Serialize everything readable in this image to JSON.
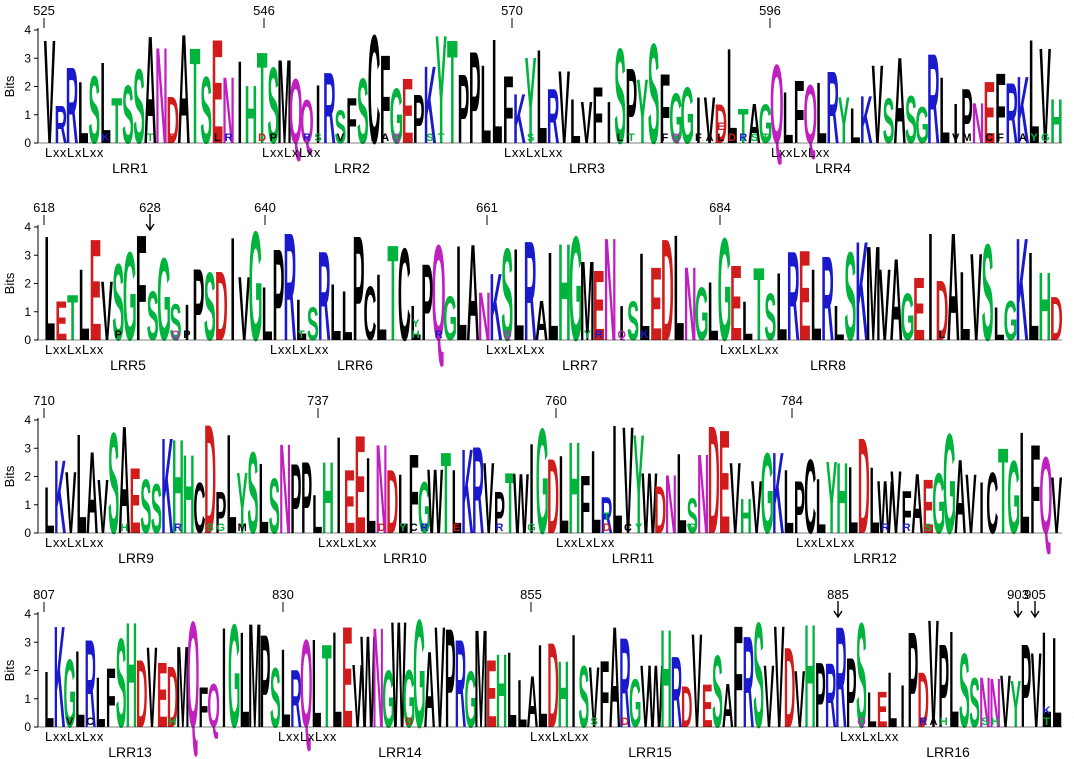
{
  "y_axis": {
    "label": "Bits",
    "ticks": [
      "0",
      "1",
      "2",
      "3",
      "4"
    ]
  },
  "motif_text": "LxxLxLxx",
  "colors": {
    "hydrophobic": "#000000",
    "polar": "#00b33c",
    "basic": "#1a1acc",
    "acidic": "#d01c1c",
    "amide": "#c020c0"
  },
  "rows": [
    {
      "position_labels": [
        "525",
        "546",
        "570",
        "596"
      ],
      "repeats": [
        "LRR1",
        "LRR2",
        "LRR3",
        "LRR4"
      ],
      "sequence": "VRRLSLTSSANDATSENIHTSMQQIRSFSCFGEPKYTPPLLFKYLRVLVFISPYSFGGIVDLTAGQLFQLRYLKVSASGRLIPNEFRKLVH",
      "minor": [
        {
          "aa": "K",
          "col": 5
        },
        {
          "aa": "T",
          "col": 9
        },
        {
          "aa": "D",
          "col": 11
        },
        {
          "aa": "L",
          "col": 15
        },
        {
          "aa": "R",
          "col": 16
        },
        {
          "aa": "D",
          "col": 19
        },
        {
          "aa": "P",
          "col": 20
        },
        {
          "aa": "R",
          "col": 23
        },
        {
          "aa": "S",
          "col": 24
        },
        {
          "aa": "V",
          "col": 26
        },
        {
          "aa": "L",
          "col": 29
        },
        {
          "aa": "A",
          "col": 30
        },
        {
          "aa": "Q",
          "col": 31
        },
        {
          "aa": "S",
          "col": 34
        },
        {
          "aa": "T",
          "col": 35
        },
        {
          "aa": "S",
          "col": 43
        },
        {
          "aa": "L",
          "col": 51
        },
        {
          "aa": "T",
          "col": 52
        },
        {
          "aa": "F",
          "col": 55
        },
        {
          "aa": "Q",
          "col": 56
        },
        {
          "aa": "F",
          "col": 58
        },
        {
          "aa": "A",
          "col": 59
        },
        {
          "aa": "L",
          "col": 60
        },
        {
          "aa": "D",
          "col": 61
        },
        {
          "aa": "R",
          "col": 62
        },
        {
          "aa": "E",
          "col": 60
        },
        {
          "aa": "S",
          "col": 63
        },
        {
          "aa": "T",
          "col": 64
        },
        {
          "aa": "F",
          "col": 69
        },
        {
          "aa": "V",
          "col": 81
        },
        {
          "aa": "M",
          "col": 82
        },
        {
          "aa": "C",
          "col": 84
        },
        {
          "aa": "F",
          "col": 85
        },
        {
          "aa": "A",
          "col": 87
        },
        {
          "aa": "Y",
          "col": 88
        },
        {
          "aa": "G",
          "col": 89
        },
        {
          "aa": "D",
          "col": 92
        },
        {
          "aa": "S",
          "col": 95
        },
        {
          "aa": "V",
          "col": 96
        }
      ]
    },
    {
      "position_labels": [
        "618",
        "628",
        "640",
        "661",
        "684"
      ],
      "repeats": [
        "LRR5",
        "LRR6",
        "LRR7",
        "LRR8"
      ],
      "sequence": "LETLEVSGFSGSIPSDIVGLPRLSRLLPCLTCLPQGLANKSLRALHGMENISLEDLNGLGELTSLRELRLSKMVAGEIDALVSLGKLHD",
      "minor": [
        {
          "aa": "P",
          "col": 6
        },
        {
          "aa": "Q",
          "col": 11
        },
        {
          "aa": "P",
          "col": 12
        },
        {
          "aa": "T",
          "col": 22
        },
        {
          "aa": "F",
          "col": 31
        },
        {
          "aa": "H",
          "col": 32
        },
        {
          "aa": "Y",
          "col": 32
        },
        {
          "aa": "R",
          "col": 34
        },
        {
          "aa": "Q",
          "col": 40
        },
        {
          "aa": "Y",
          "col": 47
        },
        {
          "aa": "R",
          "col": 48
        },
        {
          "aa": "Q",
          "col": 50
        },
        {
          "aa": "H",
          "col": 51
        },
        {
          "aa": "K",
          "col": 52
        },
        {
          "aa": "Y",
          "col": 70
        },
        {
          "aa": "L",
          "col": 78
        }
      ]
    },
    {
      "position_labels": [
        "710",
        "737",
        "760",
        "784"
      ],
      "repeats": [
        "LRR9",
        "LRR10",
        "LRR11",
        "LRR12"
      ],
      "sequence": "LKVLAVSAESSKHHCDPLYSLSNPPLHIEELNDLFGWTLKRVPTWIGDLHFLRLVYWDNLSNDEVHVGKLPCLYHLDLWVFAEGGAVICTGLFQV",
      "minor": [
        {
          "aa": "H",
          "col": 7
        },
        {
          "aa": "R",
          "col": 12
        },
        {
          "aa": "S",
          "col": 15
        },
        {
          "aa": "G",
          "col": 16
        },
        {
          "aa": "L",
          "col": 17
        },
        {
          "aa": "M",
          "col": 18
        },
        {
          "aa": "D",
          "col": 31
        },
        {
          "aa": "Y",
          "col": 33
        },
        {
          "aa": "C",
          "col": 34
        },
        {
          "aa": "R",
          "col": 35
        },
        {
          "aa": "E",
          "col": 38
        },
        {
          "aa": "R",
          "col": 42
        },
        {
          "aa": "G",
          "col": 45
        },
        {
          "aa": "D",
          "col": 52
        },
        {
          "aa": "T",
          "col": 52
        },
        {
          "aa": "C",
          "col": 54
        },
        {
          "aa": "Y",
          "col": 55
        },
        {
          "aa": "S",
          "col": 60
        },
        {
          "aa": "R",
          "col": 78
        },
        {
          "aa": "R",
          "col": 80
        },
        {
          "aa": "S",
          "col": 82
        },
        {
          "aa": "T",
          "col": 83
        }
      ]
    },
    {
      "position_labels": [
        "807",
        "830",
        "855",
        "885",
        "903",
        "905"
      ],
      "repeats": [
        "LRR13",
        "LRR14",
        "LRR15",
        "LRR16"
      ],
      "sequence": "LKGLRLFSHDVEDMQFQIGLMPSLRQLTLEVWNGWGGAVPRGMEHLLALDHISVFARGVWHRDVESAFRSVVDVHPRRPSLELIPDVPLSSNNVYPVLL",
      "minor": [
        {
          "aa": "V",
          "col": 2
        },
        {
          "aa": "C",
          "col": 4
        },
        {
          "aa": "H",
          "col": 12
        },
        {
          "aa": "D",
          "col": 35
        },
        {
          "aa": "S",
          "col": 53
        },
        {
          "aa": "D",
          "col": 56
        },
        {
          "aa": "Q",
          "col": 79
        },
        {
          "aa": "R",
          "col": 85
        },
        {
          "aa": "A",
          "col": 86
        },
        {
          "aa": "H",
          "col": 87
        },
        {
          "aa": "S",
          "col": 91
        },
        {
          "aa": "H",
          "col": 92
        },
        {
          "aa": "T",
          "col": 97
        },
        {
          "aa": "K",
          "col": 97
        },
        {
          "aa": "V",
          "col": 100
        },
        {
          "aa": "R",
          "col": 100
        }
      ]
    }
  ]
}
